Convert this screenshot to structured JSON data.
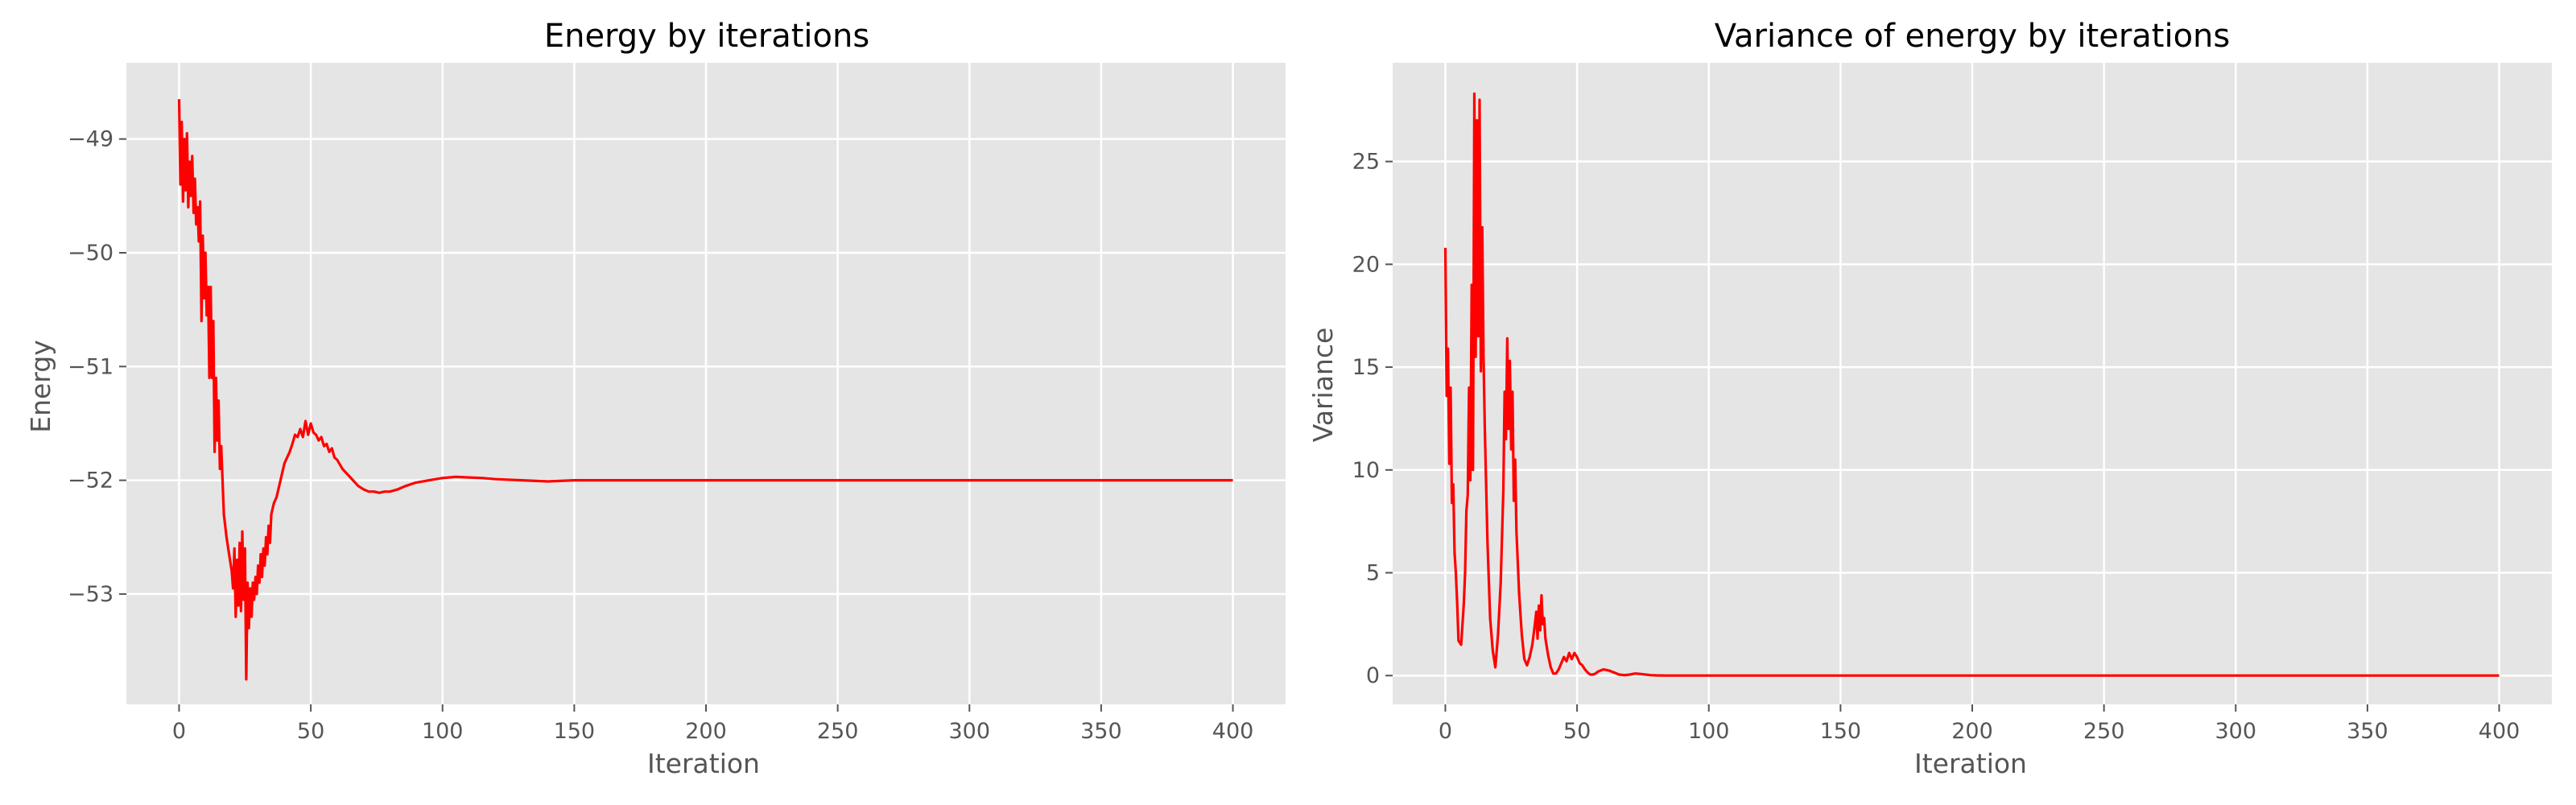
{
  "chart_data": [
    {
      "type": "line",
      "title": "Energy by iterations",
      "xlabel": "Iteration",
      "ylabel": "Energy",
      "xlim": [
        -20,
        420
      ],
      "ylim": [
        -53.97,
        -48.33
      ],
      "xticks": [
        0,
        50,
        100,
        150,
        200,
        250,
        300,
        350,
        400
      ],
      "xtick_labels": [
        "0",
        "50",
        "100",
        "150",
        "200",
        "250",
        "300",
        "350",
        "400"
      ],
      "yticks": [
        -53,
        -52,
        -51,
        -50,
        -49
      ],
      "ytick_labels": [
        "−53",
        "−52",
        "−51",
        "−50",
        "−49"
      ],
      "grid": true,
      "legend": "none",
      "series": [
        {
          "color": "#ff0000",
          "x": [
            0,
            0.5,
            1,
            1.5,
            2,
            2.5,
            3,
            3.5,
            4,
            4.5,
            5,
            5.5,
            6,
            6.5,
            7,
            7.5,
            8,
            8.5,
            9,
            9.5,
            10,
            10.5,
            11,
            11.5,
            12,
            12.5,
            13,
            13.5,
            14,
            14.5,
            15,
            15.5,
            16,
            17,
            18,
            19,
            20,
            20.5,
            21,
            21.5,
            22,
            22.5,
            23,
            23.5,
            24,
            24.5,
            25,
            25.5,
            26,
            26.5,
            27,
            27.5,
            28,
            28.5,
            29,
            29.5,
            30,
            30.5,
            31,
            31.5,
            32,
            32.5,
            33,
            33.5,
            34,
            34.5,
            35,
            36,
            37,
            38,
            39,
            40,
            41,
            42,
            43,
            44,
            45,
            46,
            47,
            48,
            49,
            50,
            51,
            52,
            53,
            54,
            55,
            56,
            57,
            58,
            59,
            60,
            62,
            64,
            66,
            68,
            70,
            72,
            74,
            76,
            78,
            80,
            83,
            86,
            90,
            95,
            100,
            105,
            110,
            115,
            120,
            130,
            140,
            150,
            160,
            180,
            200,
            250,
            300,
            350,
            400
          ],
          "y": [
            -48.65,
            -49.4,
            -48.85,
            -49.55,
            -49.0,
            -49.45,
            -48.95,
            -49.6,
            -49.2,
            -49.5,
            -49.15,
            -49.65,
            -49.35,
            -49.75,
            -49.6,
            -49.9,
            -49.55,
            -50.6,
            -49.85,
            -50.4,
            -50.0,
            -50.55,
            -50.3,
            -51.1,
            -50.3,
            -51.1,
            -50.6,
            -51.75,
            -51.1,
            -51.65,
            -51.3,
            -51.9,
            -51.7,
            -52.3,
            -52.5,
            -52.65,
            -52.8,
            -52.95,
            -52.6,
            -53.2,
            -52.7,
            -53.1,
            -52.55,
            -53.15,
            -52.45,
            -53.05,
            -52.6,
            -53.75,
            -52.9,
            -53.3,
            -52.95,
            -53.2,
            -52.9,
            -53.05,
            -52.85,
            -53.0,
            -52.75,
            -52.9,
            -52.65,
            -52.85,
            -52.6,
            -52.75,
            -52.5,
            -52.65,
            -52.4,
            -52.55,
            -52.3,
            -52.2,
            -52.15,
            -52.05,
            -51.95,
            -51.85,
            -51.8,
            -51.75,
            -51.68,
            -51.6,
            -51.62,
            -51.55,
            -51.62,
            -51.48,
            -51.6,
            -51.5,
            -51.58,
            -51.6,
            -51.65,
            -51.62,
            -51.7,
            -51.68,
            -51.75,
            -51.72,
            -51.8,
            -51.82,
            -51.9,
            -51.95,
            -52.0,
            -52.05,
            -52.08,
            -52.1,
            -52.1,
            -52.11,
            -52.1,
            -52.1,
            -52.08,
            -52.05,
            -52.02,
            -52.0,
            -51.98,
            -51.97,
            -51.975,
            -51.98,
            -51.99,
            -52.0,
            -52.01,
            -52.0,
            -52.0,
            -52.0,
            -52.0,
            -52.0,
            -52.0,
            -52.0,
            -52.0
          ]
        }
      ]
    },
    {
      "type": "line",
      "title": "Variance of energy by iterations",
      "xlabel": "Iteration",
      "ylabel": "Variance",
      "xlim": [
        -20,
        420
      ],
      "ylim": [
        -1.4,
        29.8
      ],
      "xticks": [
        0,
        50,
        100,
        150,
        200,
        250,
        300,
        350,
        400
      ],
      "xtick_labels": [
        "0",
        "50",
        "100",
        "150",
        "200",
        "250",
        "300",
        "350",
        "400"
      ],
      "yticks": [
        0,
        5,
        10,
        15,
        20,
        25
      ],
      "ytick_labels": [
        "0",
        "5",
        "10",
        "15",
        "20",
        "25"
      ],
      "grid": true,
      "legend": "none",
      "series": [
        {
          "color": "#ff0000",
          "x": [
            0,
            0.5,
            1,
            1.5,
            2,
            2.5,
            3,
            3.5,
            4,
            4.5,
            5,
            6,
            7,
            7.5,
            8,
            8.5,
            9,
            9.5,
            10,
            10.5,
            11,
            11.5,
            12,
            12.5,
            13,
            13.5,
            14,
            14.5,
            15,
            16,
            17,
            18,
            19,
            20,
            21,
            22,
            22.5,
            23,
            23.5,
            24,
            24.5,
            25,
            25.5,
            26,
            26.5,
            27,
            28,
            29,
            30,
            31,
            32,
            33,
            34,
            34.5,
            35,
            35.5,
            36,
            36.5,
            37,
            37.5,
            38,
            39,
            40,
            41,
            42,
            43,
            44,
            45,
            46,
            47,
            48,
            49,
            50,
            51,
            52,
            53,
            54,
            55,
            56,
            57,
            58,
            60,
            62,
            64,
            66,
            68,
            70,
            72,
            74,
            76,
            78,
            80,
            84,
            88,
            95,
            100,
            120,
            150,
            200,
            250,
            300,
            350,
            400
          ],
          "y": [
            20.8,
            13.6,
            15.9,
            10.3,
            14.0,
            8.4,
            9.3,
            6.0,
            5.0,
            3.5,
            1.7,
            1.5,
            3.5,
            5.0,
            8.0,
            8.8,
            14.0,
            9.5,
            19.0,
            10.0,
            28.3,
            15.5,
            27.0,
            16.5,
            28.0,
            14.8,
            21.8,
            15.5,
            12.0,
            6.5,
            2.8,
            1.2,
            0.4,
            2.0,
            4.5,
            9.0,
            13.8,
            11.5,
            16.4,
            12.0,
            15.3,
            11.0,
            13.8,
            8.5,
            10.5,
            7.0,
            4.0,
            2.0,
            0.8,
            0.5,
            0.9,
            1.5,
            2.5,
            3.1,
            1.8,
            3.4,
            2.2,
            3.9,
            2.5,
            2.8,
            1.8,
            1.0,
            0.4,
            0.1,
            0.1,
            0.3,
            0.6,
            0.9,
            0.7,
            1.1,
            0.8,
            1.1,
            0.9,
            0.6,
            0.5,
            0.3,
            0.15,
            0.05,
            0.05,
            0.1,
            0.2,
            0.3,
            0.25,
            0.15,
            0.05,
            0.02,
            0.05,
            0.1,
            0.08,
            0.05,
            0.02,
            0.01,
            0.0,
            0.0,
            0.0,
            0.0,
            0.0,
            0.0,
            0.0,
            0.0,
            0.0,
            0.0,
            0.0
          ]
        }
      ]
    }
  ]
}
